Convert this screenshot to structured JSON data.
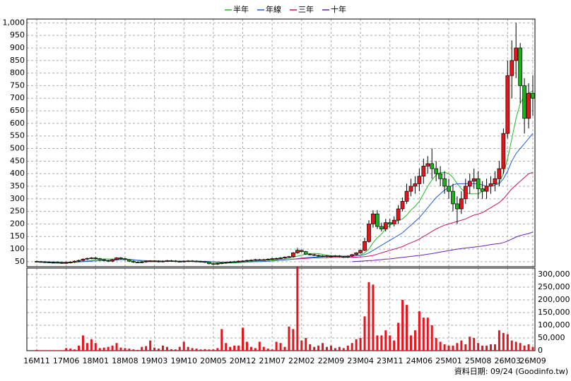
{
  "chart_data": {
    "type": "candlestick",
    "categories": [
      "16M11",
      null,
      null,
      null,
      null,
      null,
      null,
      "17M06",
      null,
      null,
      null,
      null,
      null,
      null,
      "18M01",
      null,
      null,
      null,
      null,
      null,
      null,
      "18M08",
      null,
      null,
      null,
      null,
      null,
      null,
      "19M03",
      null,
      null,
      null,
      null,
      null,
      null,
      "19M10",
      null,
      null,
      null,
      null,
      null,
      null,
      "20M05",
      null,
      null,
      null,
      null,
      null,
      null,
      "20M12",
      null,
      null,
      null,
      null,
      null,
      null,
      "21M07",
      null,
      null,
      null,
      null,
      null,
      null,
      "22M02",
      null,
      null,
      null,
      null,
      null,
      null,
      "22M09",
      null,
      null,
      null,
      null,
      null,
      null,
      "23M04",
      null,
      null,
      null,
      null,
      null,
      null,
      "23M11",
      null,
      null,
      null,
      null,
      null,
      null,
      "24M06",
      null,
      null,
      null,
      null,
      null,
      null,
      "25M01",
      null,
      null,
      null,
      null,
      null,
      null,
      "25M08",
      null,
      null,
      null,
      null,
      null,
      null,
      "26M03",
      null,
      null,
      null,
      null,
      null,
      "26M09"
    ],
    "open": [
      51,
      50,
      49,
      48,
      47,
      47,
      46,
      45,
      46,
      48,
      52,
      55,
      60,
      63,
      65,
      62,
      58,
      55,
      52,
      58,
      65,
      62,
      58,
      52,
      48,
      47,
      49,
      52,
      53,
      52,
      50,
      52,
      54,
      53,
      51,
      50,
      52,
      53,
      52,
      51,
      50,
      48,
      42,
      40,
      43,
      45,
      47,
      49,
      50,
      52,
      53,
      55,
      56,
      58,
      57,
      58,
      60,
      62,
      63,
      65,
      68,
      70,
      85,
      95,
      90,
      80,
      78,
      75,
      72,
      73,
      70,
      72,
      73,
      70,
      68,
      72,
      78,
      85,
      95,
      130,
      200,
      240,
      190,
      180,
      205,
      200,
      215,
      260,
      290,
      330,
      350,
      360,
      390,
      430,
      440,
      420,
      400,
      380,
      350,
      330,
      280,
      260,
      300,
      350,
      370,
      380,
      340,
      330,
      350,
      360,
      380,
      420,
      560,
      790,
      850,
      900,
      750,
      620,
      720
    ],
    "high": [
      54,
      53,
      52,
      51,
      50,
      50,
      49,
      49,
      51,
      55,
      58,
      63,
      66,
      68,
      68,
      65,
      61,
      58,
      61,
      68,
      68,
      65,
      61,
      55,
      51,
      52,
      55,
      56,
      56,
      55,
      55,
      57,
      57,
      56,
      54,
      55,
      56,
      56,
      55,
      54,
      53,
      51,
      45,
      46,
      48,
      50,
      52,
      53,
      55,
      56,
      58,
      59,
      61,
      61,
      61,
      63,
      65,
      66,
      68,
      71,
      73,
      88,
      105,
      98,
      93,
      83,
      81,
      78,
      76,
      76,
      75,
      76,
      76,
      73,
      75,
      81,
      88,
      98,
      145,
      215,
      255,
      255,
      205,
      220,
      220,
      230,
      275,
      305,
      360,
      380,
      390,
      420,
      460,
      470,
      500,
      450,
      430,
      410,
      380,
      360,
      310,
      330,
      380,
      400,
      420,
      410,
      370,
      380,
      390,
      410,
      450,
      580,
      850,
      930,
      1000,
      920,
      780,
      760,
      790
    ],
    "low": [
      47,
      46,
      45,
      44,
      44,
      43,
      42,
      42,
      43,
      45,
      49,
      52,
      57,
      60,
      59,
      55,
      52,
      49,
      49,
      55,
      59,
      55,
      49,
      45,
      44,
      44,
      46,
      49,
      49,
      47,
      47,
      49,
      50,
      48,
      47,
      47,
      49,
      49,
      48,
      47,
      45,
      39,
      37,
      37,
      40,
      42,
      44,
      46,
      47,
      49,
      50,
      52,
      53,
      54,
      54,
      55,
      57,
      59,
      60,
      62,
      65,
      67,
      82,
      87,
      77,
      75,
      72,
      69,
      69,
      67,
      67,
      69,
      67,
      65,
      65,
      69,
      75,
      82,
      92,
      125,
      185,
      180,
      170,
      170,
      185,
      190,
      200,
      250,
      280,
      310,
      320,
      330,
      360,
      400,
      380,
      370,
      350,
      320,
      300,
      250,
      200,
      240,
      280,
      320,
      340,
      300,
      300,
      300,
      320,
      330,
      350,
      400,
      540,
      700,
      780,
      680,
      560,
      580,
      630
    ],
    "close": [
      50,
      49,
      48,
      47,
      47,
      46,
      45,
      46,
      48,
      52,
      55,
      60,
      63,
      65,
      62,
      58,
      55,
      52,
      58,
      65,
      62,
      58,
      52,
      48,
      47,
      49,
      52,
      53,
      52,
      50,
      52,
      54,
      53,
      51,
      50,
      52,
      53,
      52,
      51,
      50,
      48,
      42,
      40,
      43,
      45,
      47,
      49,
      50,
      52,
      53,
      55,
      56,
      58,
      57,
      58,
      60,
      62,
      63,
      65,
      68,
      70,
      85,
      95,
      90,
      80,
      78,
      75,
      72,
      73,
      70,
      72,
      73,
      70,
      68,
      72,
      78,
      85,
      95,
      130,
      200,
      240,
      190,
      180,
      205,
      200,
      215,
      260,
      290,
      330,
      350,
      360,
      390,
      430,
      440,
      420,
      400,
      380,
      350,
      330,
      280,
      260,
      300,
      350,
      370,
      380,
      340,
      330,
      350,
      360,
      380,
      420,
      560,
      790,
      850,
      900,
      750,
      620,
      720,
      700
    ],
    "up_color": "#e8141c",
    "down_color": "#17b417",
    "flat_color": "#000000",
    "ylim": [
      30,
      1015
    ],
    "yticks": [
      50,
      100,
      150,
      200,
      250,
      300,
      350,
      400,
      450,
      500,
      550,
      600,
      650,
      700,
      750,
      800,
      850,
      900,
      950,
      {
        "value": 1000,
        "label": "1,000"
      }
    ],
    "grid": true,
    "series": [
      {
        "name": "半年",
        "color": "#22bb22",
        "values": [
          50,
          50,
          49,
          49,
          48,
          48,
          47,
          47,
          47,
          47,
          49,
          51,
          53,
          55,
          58,
          60,
          61,
          61,
          60,
          60,
          60,
          60,
          59,
          58,
          55,
          52,
          51,
          50,
          50,
          51,
          51,
          52,
          52,
          52,
          52,
          52,
          52,
          52,
          52,
          52,
          51,
          50,
          48,
          46,
          45,
          45,
          45,
          45,
          46,
          47,
          49,
          51,
          52,
          54,
          55,
          56,
          57,
          58,
          60,
          61,
          63,
          67,
          72,
          76,
          80,
          82,
          83,
          82,
          79,
          76,
          74,
          73,
          72,
          71,
          71,
          72,
          74,
          77,
          85,
          100,
          125,
          145,
          160,
          180,
          195,
          205,
          215,
          220,
          235,
          255,
          270,
          290,
          320,
          350,
          375,
          395,
          405,
          405,
          400,
          385,
          360,
          340,
          325,
          320,
          320,
          320,
          330,
          345,
          355,
          360,
          365,
          400,
          460,
          540,
          620,
          680,
          710,
          720,
          730
        ]
      },
      {
        "name": "年線",
        "color": "#1a5fd6",
        "values": [
          50,
          50,
          50,
          49,
          49,
          49,
          48,
          48,
          48,
          48,
          49,
          50,
          51,
          52,
          53,
          54,
          54,
          55,
          56,
          57,
          58,
          58,
          58,
          57,
          56,
          55,
          54,
          53,
          53,
          53,
          52,
          52,
          52,
          52,
          52,
          52,
          52,
          52,
          52,
          51,
          51,
          50,
          49,
          49,
          48,
          48,
          48,
          48,
          48,
          48,
          49,
          49,
          50,
          50,
          51,
          52,
          53,
          54,
          56,
          57,
          58,
          60,
          62,
          64,
          66,
          67,
          68,
          69,
          70,
          71,
          72,
          72,
          72,
          72,
          72,
          73,
          74,
          75,
          78,
          85,
          95,
          105,
          115,
          125,
          135,
          145,
          155,
          165,
          180,
          195,
          210,
          225,
          245,
          265,
          285,
          305,
          320,
          335,
          345,
          355,
          360,
          360,
          360,
          360,
          360,
          360,
          355,
          350,
          350,
          355,
          360,
          380,
          410,
          450,
          480,
          500,
          520,
          540,
          560
        ]
      },
      {
        "name": "三年",
        "color": "#cc1166",
        "values": [
          null,
          null,
          null,
          null,
          null,
          null,
          null,
          null,
          null,
          null,
          null,
          null,
          null,
          null,
          null,
          null,
          null,
          null,
          null,
          null,
          null,
          null,
          null,
          null,
          null,
          null,
          null,
          null,
          null,
          null,
          null,
          null,
          null,
          null,
          null,
          null,
          null,
          null,
          null,
          null,
          null,
          null,
          null,
          null,
          null,
          null,
          null,
          null,
          null,
          null,
          null,
          null,
          null,
          null,
          null,
          null,
          null,
          null,
          null,
          null,
          null,
          60,
          61,
          62,
          63,
          64,
          65,
          65,
          66,
          66,
          67,
          67,
          67,
          67,
          67,
          68,
          68,
          69,
          70,
          72,
          75,
          80,
          85,
          90,
          95,
          100,
          105,
          110,
          118,
          125,
          132,
          140,
          150,
          160,
          170,
          180,
          188,
          195,
          200,
          205,
          210,
          215,
          220,
          228,
          235,
          240,
          245,
          255,
          265,
          275,
          285,
          300,
          320,
          340,
          355,
          370,
          385,
          400,
          405
        ]
      },
      {
        "name": "十年",
        "color": "#6a1fb5",
        "values": [
          null,
          null,
          null,
          null,
          null,
          null,
          null,
          null,
          null,
          null,
          null,
          null,
          null,
          null,
          null,
          null,
          null,
          null,
          null,
          null,
          null,
          null,
          null,
          null,
          null,
          null,
          null,
          null,
          null,
          null,
          null,
          null,
          null,
          null,
          null,
          null,
          null,
          null,
          null,
          null,
          null,
          null,
          null,
          null,
          null,
          null,
          null,
          null,
          null,
          null,
          null,
          null,
          null,
          null,
          null,
          null,
          null,
          null,
          null,
          null,
          null,
          null,
          null,
          null,
          null,
          null,
          null,
          null,
          null,
          null,
          null,
          null,
          null,
          null,
          null,
          50,
          51,
          52,
          53,
          54,
          55,
          57,
          58,
          60,
          61,
          63,
          65,
          67,
          69,
          71,
          73,
          75,
          77,
          80,
          82,
          85,
          88,
          91,
          94,
          97,
          100,
          102,
          104,
          106,
          108,
          110,
          112,
          115,
          118,
          120,
          122,
          126,
          132,
          140,
          148,
          154,
          158,
          162,
          168
        ]
      }
    ],
    "volume": {
      "color": "#e8141c",
      "values": [
        3000,
        2000,
        2000,
        2000,
        2000,
        2000,
        2000,
        10000,
        8000,
        5000,
        20000,
        60000,
        30000,
        45000,
        30000,
        10000,
        12000,
        15000,
        20000,
        30000,
        12000,
        10000,
        8000,
        5000,
        3000,
        15000,
        18000,
        40000,
        12000,
        8000,
        20000,
        15000,
        6000,
        5000,
        15000,
        35000,
        15000,
        10000,
        8000,
        5000,
        6000,
        5000,
        5000,
        10000,
        85000,
        30000,
        15000,
        20000,
        20000,
        90000,
        35000,
        15000,
        10000,
        35000,
        15000,
        8000,
        5000,
        35000,
        30000,
        15000,
        95000,
        85000,
        330000,
        40000,
        50000,
        25000,
        15000,
        20000,
        30000,
        15000,
        20000,
        10000,
        15000,
        10000,
        20000,
        30000,
        45000,
        50000,
        135000,
        270000,
        260000,
        60000,
        60000,
        80000,
        60000,
        40000,
        110000,
        200000,
        180000,
        60000,
        80000,
        155000,
        130000,
        130000,
        100000,
        50000,
        35000,
        25000,
        20000,
        20000,
        30000,
        40000,
        25000,
        55000,
        50000,
        30000,
        20000,
        20000,
        25000,
        25000,
        80000,
        70000,
        65000,
        40000,
        35000,
        30000,
        20000,
        25000,
        15000
      ],
      "ylim": [
        0,
        325000
      ],
      "yticks": [
        0,
        {
          "value": 50000,
          "label": "50,000"
        },
        {
          "value": 100000,
          "label": "100,000"
        },
        {
          "value": 150000,
          "label": "150,000"
        },
        {
          "value": 200000,
          "label": "200,000"
        },
        {
          "value": 250000,
          "label": "250,000"
        },
        {
          "value": 300000,
          "label": "300,000"
        }
      ]
    },
    "footnote": "資料日期: 09/24  (Goodinfo.tw)"
  }
}
